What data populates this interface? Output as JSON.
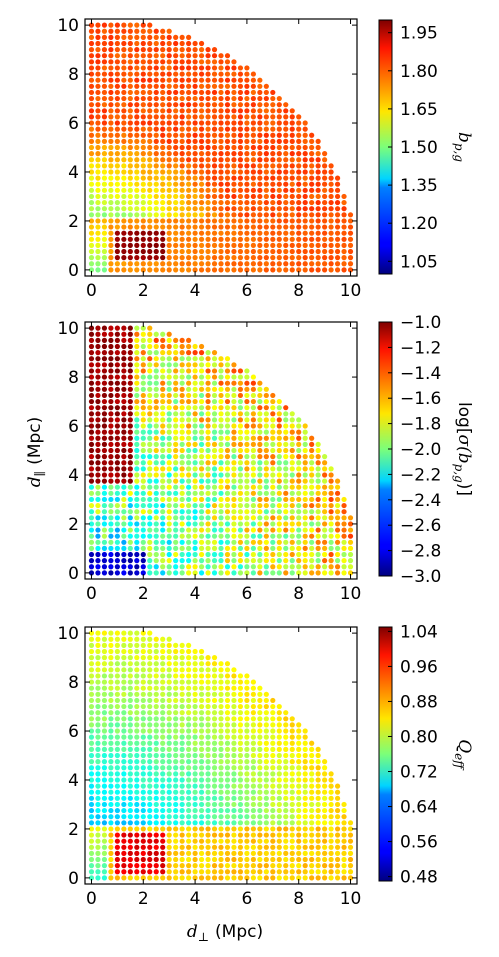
{
  "figure": {
    "xlabel_symbol": "d",
    "xlabel_sub": "⊥",
    "xlabel_unit": "(Mpc)",
    "ylabel_symbol": "d",
    "ylabel_sub": "∥",
    "ylabel_unit": "(Mpc)"
  },
  "chart_data": [
    {
      "type": "scatter",
      "subtype": "colormap-grid",
      "colormap": "jet",
      "x_ticks": [
        "0",
        "2",
        "4",
        "6",
        "8",
        "10"
      ],
      "y_ticks": [
        "0",
        "2",
        "4",
        "6",
        "8",
        "10"
      ],
      "xlim": [
        -0.25,
        10.25
      ],
      "ylim": [
        -0.25,
        10.25
      ],
      "grid": false,
      "colorbar": {
        "label": "b_p,g",
        "label_symbol": "b",
        "label_sub": "p,g",
        "range": [
          1.0,
          2.0
        ],
        "ticks": [
          "1.95",
          "1.80",
          "1.65",
          "1.50",
          "1.35",
          "1.20",
          "1.05"
        ],
        "tick_values": [
          1.95,
          1.8,
          1.65,
          1.5,
          1.35,
          1.2,
          1.05
        ]
      },
      "field": "bias"
    },
    {
      "type": "scatter",
      "subtype": "colormap-grid",
      "colormap": "jet",
      "x_ticks": [
        "0",
        "2",
        "4",
        "6",
        "8",
        "10"
      ],
      "y_ticks": [
        "0",
        "2",
        "4",
        "6",
        "8",
        "10"
      ],
      "xlim": [
        -0.25,
        10.25
      ],
      "ylim": [
        -0.25,
        10.25
      ],
      "grid": false,
      "colorbar": {
        "label": "log[σ(b_p,g)]",
        "label_pre": "log[",
        "label_symbol": "σ(b",
        "label_sub": "p,g",
        "label_post": ")]",
        "range": [
          -3.0,
          -1.0
        ],
        "ticks": [
          "−1.0",
          "−1.2",
          "−1.4",
          "−1.6",
          "−1.8",
          "−2.0",
          "−2.2",
          "−2.4",
          "−2.6",
          "−2.8",
          "−3.0"
        ],
        "tick_values": [
          -1.0,
          -1.2,
          -1.4,
          -1.6,
          -1.8,
          -2.0,
          -2.2,
          -2.4,
          -2.6,
          -2.8,
          -3.0
        ]
      },
      "field": "logsigma"
    },
    {
      "type": "scatter",
      "subtype": "colormap-grid",
      "colormap": "jet",
      "x_ticks": [
        "0",
        "2",
        "4",
        "6",
        "8",
        "10"
      ],
      "y_ticks": [
        "0",
        "2",
        "4",
        "6",
        "8",
        "10"
      ],
      "xlim": [
        -0.25,
        10.25
      ],
      "ylim": [
        -0.25,
        10.25
      ],
      "grid": false,
      "colorbar": {
        "label": "Q_eff",
        "label_symbol": "Q",
        "label_sub": "eff",
        "range": [
          0.47,
          1.05
        ],
        "ticks": [
          "1.04",
          "0.96",
          "0.88",
          "0.80",
          "0.72",
          "0.64",
          "0.56",
          "0.48"
        ],
        "tick_values": [
          1.04,
          0.96,
          0.88,
          0.8,
          0.72,
          0.64,
          0.56,
          0.48
        ]
      },
      "field": "qeff"
    }
  ]
}
